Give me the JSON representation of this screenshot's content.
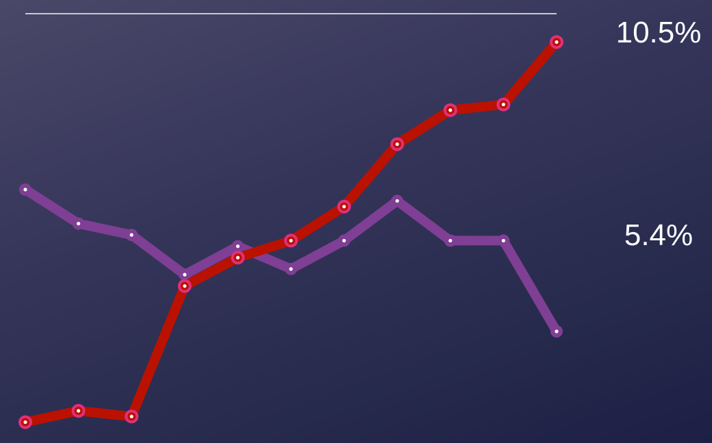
{
  "chart_data": {
    "type": "line",
    "title": "",
    "xlabel": "",
    "ylabel": "",
    "x": [
      1,
      2,
      3,
      4,
      5,
      6,
      7,
      8,
      9,
      10,
      11
    ],
    "ylim": [
      4.0,
      11.0
    ],
    "grid": false,
    "legend": "none",
    "series": [
      {
        "values": [
          7.9,
          7.3,
          7.1,
          6.4,
          6.9,
          6.5,
          7.0,
          7.7,
          7.0,
          7.0,
          5.4
        ],
        "color": "#7f3f94",
        "end_label": "5.4%"
      },
      {
        "values": [
          3.8,
          4.0,
          3.9,
          6.2,
          6.7,
          7.0,
          7.6,
          8.7,
          9.3,
          9.4,
          10.5
        ],
        "color": "#bb1100",
        "marker_color": "#e0307a",
        "end_label": "10.5%"
      }
    ],
    "colors": {
      "top_rule": "#c8c8d0",
      "label_text": "#ffffff",
      "point_center": "#ffffff"
    }
  }
}
